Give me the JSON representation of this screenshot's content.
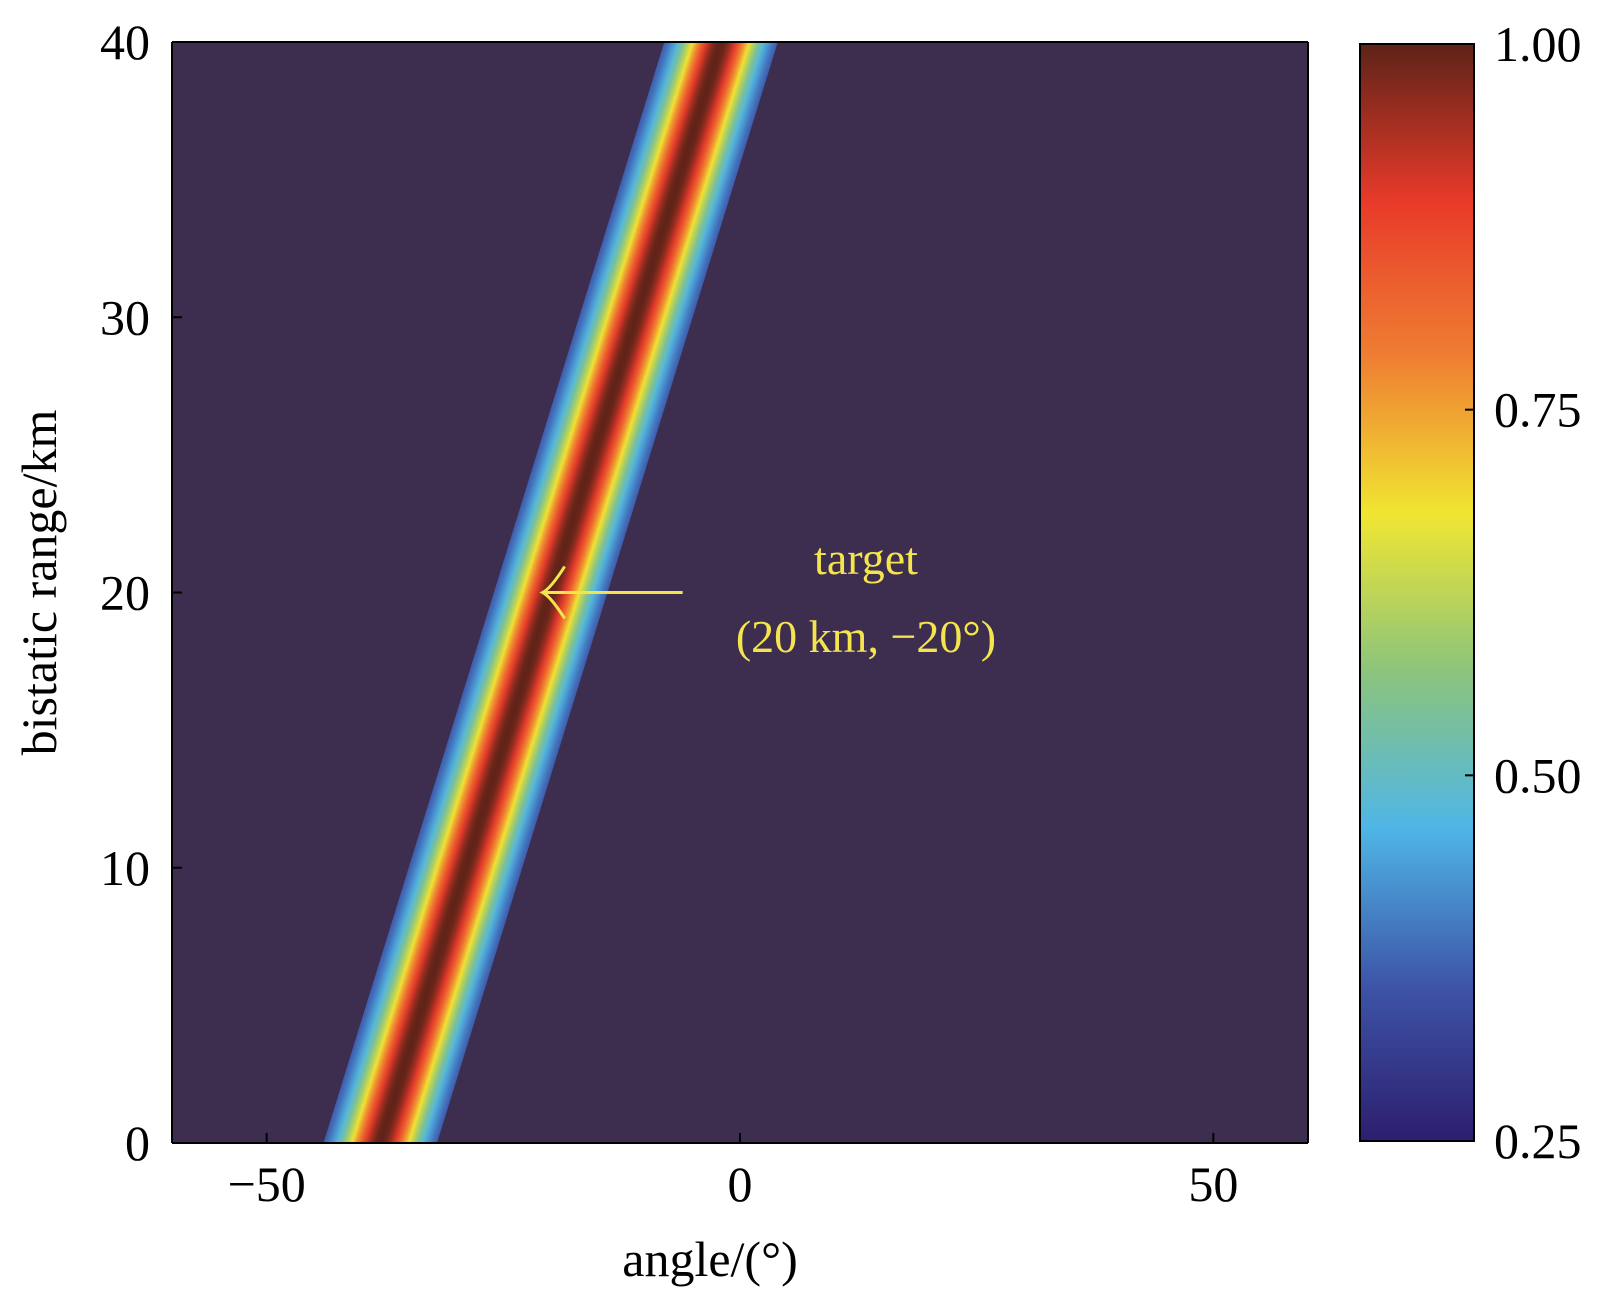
{
  "chart_data": {
    "type": "heatmap",
    "title": "",
    "xlabel": "angle/(°)",
    "ylabel": "bistatic range/km",
    "xlim": [
      -60,
      60
    ],
    "ylim": [
      0,
      40
    ],
    "x_ticks": [
      -50,
      0,
      50
    ],
    "x_tick_labels": [
      "−50",
      "0",
      "50"
    ],
    "y_ticks": [
      0,
      10,
      20,
      30,
      40
    ],
    "y_tick_labels": [
      "0",
      "10",
      "20",
      "30",
      "40"
    ],
    "grid": false,
    "background_value": 0.3,
    "band": {
      "description_of_values": "ridge of maximum response; peak angle varies linearly with bistatic range",
      "points": [
        {
          "range_km": 0,
          "peak_angle_deg": -38
        },
        {
          "range_km": 20,
          "peak_angle_deg": -20
        },
        {
          "range_km": 40,
          "peak_angle_deg": -2
        }
      ],
      "peak_value": 1.0,
      "half_width_deg": 6
    },
    "colorbar": {
      "min": 0.25,
      "max": 1.0,
      "ticks": [
        0.25,
        0.5,
        0.75,
        1.0
      ],
      "tick_labels": [
        "0.25",
        "0.50",
        "0.75",
        "1.00"
      ],
      "colors": [
        "#2d1e6e",
        "#3d55a8",
        "#4fb6e6",
        "#8cc47c",
        "#f0e632",
        "#ef7e32",
        "#e83a2a",
        "#5e2318"
      ]
    },
    "annotation": {
      "text_line1": "target",
      "text_line2": "(20 km, −20°)",
      "point": {
        "range_km": 20,
        "angle_deg": -20
      },
      "color": "#f4e54e"
    }
  }
}
